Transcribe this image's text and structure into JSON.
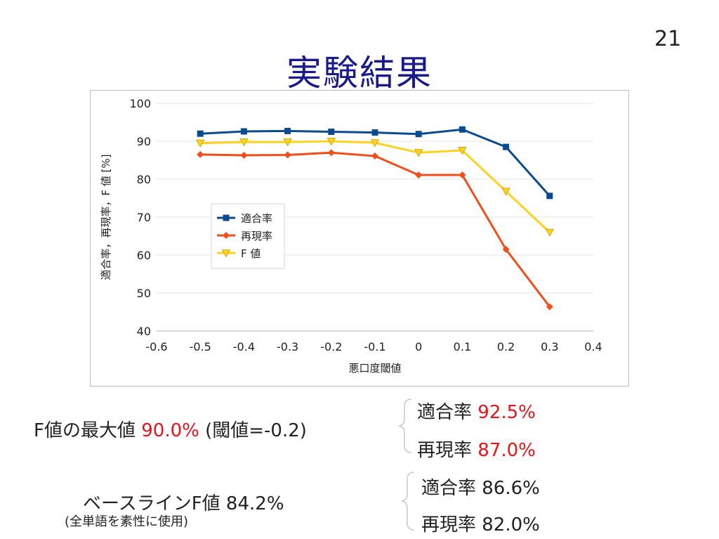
{
  "slide": {
    "title": "実験結果",
    "page_number": "21"
  },
  "chart_data": {
    "type": "line",
    "xlabel": "悪口度閾値",
    "ylabel": "適合率，再現率，F 値 [%]",
    "xlim": [
      -0.6,
      0.4
    ],
    "ylim": [
      40,
      100
    ],
    "x_ticks": [
      "-0.6",
      "-0.5",
      "-0.4",
      "-0.3",
      "-0.2",
      "-0.1",
      "0",
      "0.1",
      "0.2",
      "0.3",
      "0.4"
    ],
    "y_ticks": [
      "40",
      "50",
      "60",
      "70",
      "80",
      "90",
      "100"
    ],
    "grid": "horizontal",
    "legend_position": "left-middle",
    "x": [
      -0.5,
      -0.4,
      -0.3,
      -0.2,
      -0.1,
      0,
      0.1,
      0.2,
      0.3
    ],
    "series": [
      {
        "name": "適合率",
        "color": "#0b4a8f",
        "marker": "square",
        "values": [
          92.0,
          92.6,
          92.7,
          92.5,
          92.3,
          91.9,
          93.1,
          88.5,
          75.6
        ]
      },
      {
        "name": "再現率",
        "color": "#f04e1b",
        "marker": "diamond",
        "values": [
          86.5,
          86.3,
          86.4,
          87.0,
          86.1,
          81.1,
          81.1,
          61.5,
          46.4
        ]
      },
      {
        "name": "F 値",
        "color": "#ffd21f",
        "marker": "triangle",
        "values": [
          89.5,
          89.8,
          89.8,
          90.0,
          89.6,
          87.0,
          87.6,
          76.8,
          66.0
        ]
      }
    ]
  },
  "summary": {
    "best_label": "F値の最大値",
    "best_value": "90.0%",
    "best_threshold": "(閾値=-0.2)",
    "best_precision_label": "適合率",
    "best_precision_value": "92.5%",
    "best_recall_label": "再現率",
    "best_recall_value": "87.0%",
    "baseline_label": "ベースラインF値",
    "baseline_value": "84.2%",
    "baseline_note": "(全単語を素性に使用)",
    "baseline_precision": "適合率 86.6%",
    "baseline_recall": "再現率 82.0%"
  }
}
